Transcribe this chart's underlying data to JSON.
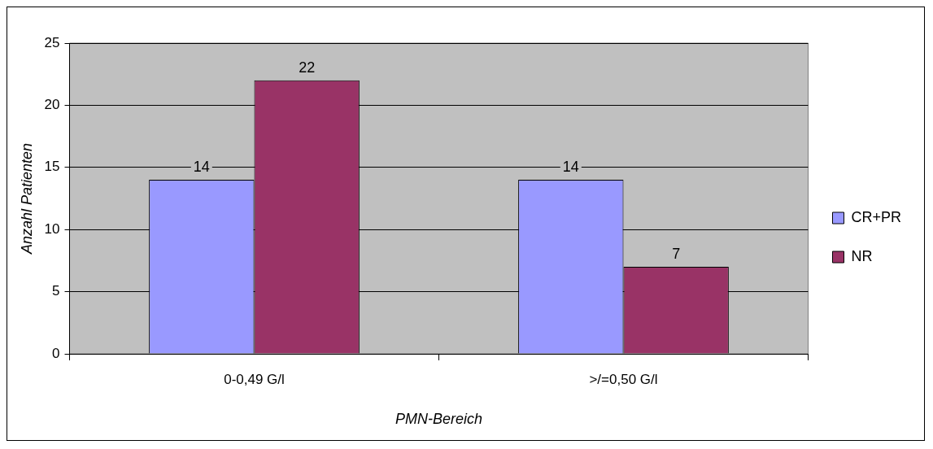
{
  "chart_data": {
    "type": "bar",
    "xlabel": "PMN-Bereich",
    "ylabel": "Anzahl Patienten",
    "categories": [
      "0-0,49 G/l",
      ">/=0,50 G/l"
    ],
    "series": [
      {
        "name": "CR+PR",
        "color": "#9999ff",
        "values": [
          14,
          14
        ]
      },
      {
        "name": "NR",
        "color": "#993366",
        "values": [
          22,
          7
        ]
      }
    ],
    "ylim": [
      0,
      25
    ],
    "yticks": [
      0,
      5,
      10,
      15,
      20,
      25
    ],
    "grid": "y",
    "legend": "right",
    "data_labels": true
  }
}
